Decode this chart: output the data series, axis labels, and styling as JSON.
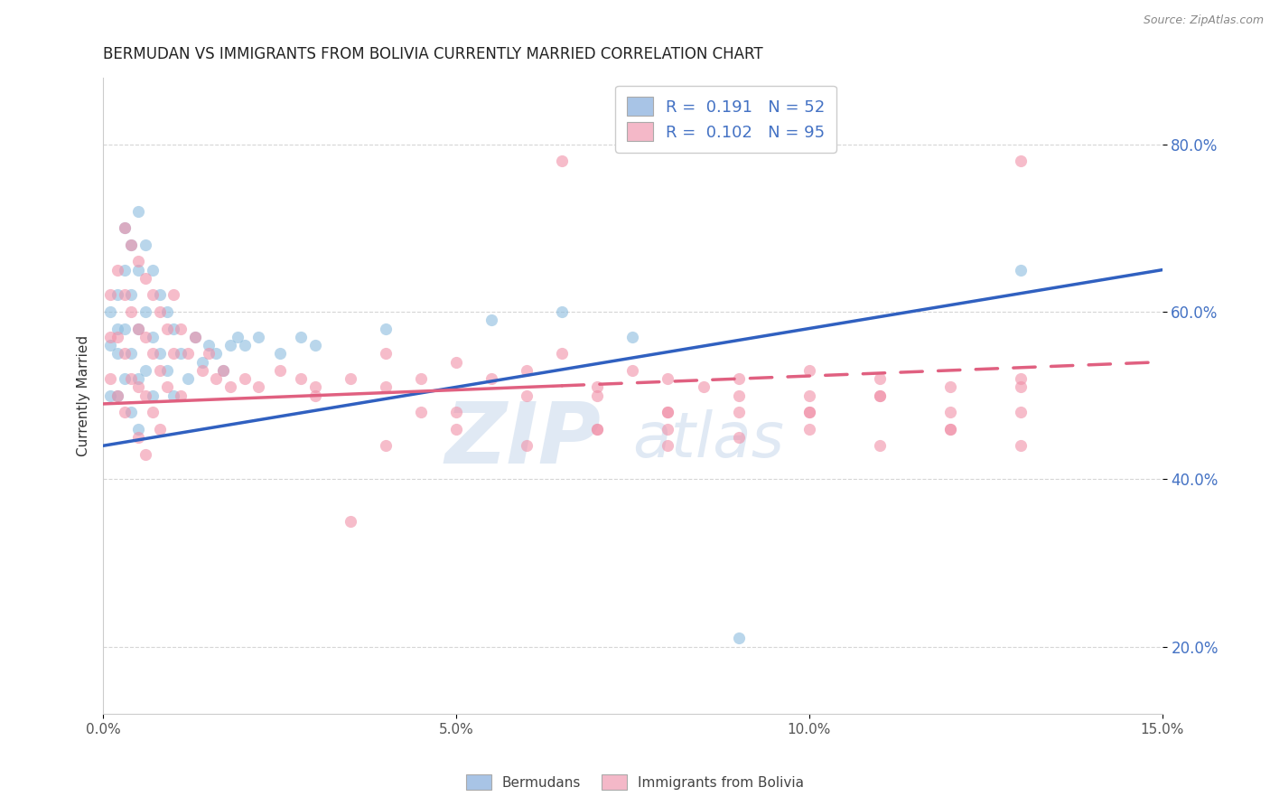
{
  "title": "BERMUDAN VS IMMIGRANTS FROM BOLIVIA CURRENTLY MARRIED CORRELATION CHART",
  "source": "Source: ZipAtlas.com",
  "ylabel_left": "Currently Married",
  "xlim": [
    0.0,
    0.15
  ],
  "ylim": [
    0.12,
    0.88
  ],
  "yticks": [
    0.2,
    0.4,
    0.6,
    0.8
  ],
  "ytick_labels": [
    "20.0%",
    "40.0%",
    "60.0%",
    "80.0%"
  ],
  "xticks": [
    0.0,
    0.05,
    0.1,
    0.15
  ],
  "xtick_labels": [
    "0.0%",
    "5.0%",
    "10.0%",
    "15.0%"
  ],
  "legend_r1": "R =  0.191   N = 52",
  "legend_r2": "R =  0.102   N = 95",
  "legend_blue_color": "#a8c4e6",
  "legend_pink_color": "#f4b8c8",
  "watermark_zip": "ZIP",
  "watermark_atlas": "atlas",
  "blue_scatter_x": [
    0.001,
    0.001,
    0.001,
    0.002,
    0.002,
    0.002,
    0.002,
    0.003,
    0.003,
    0.003,
    0.003,
    0.004,
    0.004,
    0.004,
    0.004,
    0.005,
    0.005,
    0.005,
    0.005,
    0.005,
    0.006,
    0.006,
    0.006,
    0.007,
    0.007,
    0.007,
    0.008,
    0.008,
    0.009,
    0.009,
    0.01,
    0.01,
    0.011,
    0.012,
    0.013,
    0.014,
    0.015,
    0.016,
    0.017,
    0.018,
    0.019,
    0.02,
    0.022,
    0.025,
    0.028,
    0.03,
    0.04,
    0.055,
    0.065,
    0.075,
    0.09,
    0.13
  ],
  "blue_scatter_y": [
    0.5,
    0.56,
    0.6,
    0.58,
    0.5,
    0.55,
    0.62,
    0.7,
    0.65,
    0.58,
    0.52,
    0.68,
    0.62,
    0.55,
    0.48,
    0.72,
    0.65,
    0.58,
    0.52,
    0.46,
    0.68,
    0.6,
    0.53,
    0.65,
    0.57,
    0.5,
    0.62,
    0.55,
    0.6,
    0.53,
    0.58,
    0.5,
    0.55,
    0.52,
    0.57,
    0.54,
    0.56,
    0.55,
    0.53,
    0.56,
    0.57,
    0.56,
    0.57,
    0.55,
    0.57,
    0.56,
    0.58,
    0.59,
    0.6,
    0.57,
    0.21,
    0.65
  ],
  "pink_scatter_x": [
    0.001,
    0.001,
    0.001,
    0.002,
    0.002,
    0.002,
    0.003,
    0.003,
    0.003,
    0.003,
    0.004,
    0.004,
    0.004,
    0.005,
    0.005,
    0.005,
    0.005,
    0.006,
    0.006,
    0.006,
    0.006,
    0.007,
    0.007,
    0.007,
    0.008,
    0.008,
    0.008,
    0.009,
    0.009,
    0.01,
    0.01,
    0.011,
    0.011,
    0.012,
    0.013,
    0.014,
    0.015,
    0.016,
    0.017,
    0.018,
    0.02,
    0.022,
    0.025,
    0.028,
    0.03,
    0.035,
    0.04,
    0.045,
    0.05,
    0.055,
    0.06,
    0.065,
    0.07,
    0.075,
    0.08,
    0.085,
    0.09,
    0.1,
    0.11,
    0.12,
    0.13,
    0.065,
    0.035,
    0.045,
    0.06,
    0.07,
    0.08,
    0.09,
    0.1,
    0.11,
    0.12,
    0.13,
    0.04,
    0.05,
    0.06,
    0.07,
    0.08,
    0.09,
    0.1,
    0.11,
    0.12,
    0.13,
    0.04,
    0.08,
    0.1,
    0.13,
    0.08,
    0.1,
    0.12,
    0.03,
    0.05,
    0.07,
    0.09,
    0.11,
    0.13
  ],
  "pink_scatter_y": [
    0.52,
    0.57,
    0.62,
    0.65,
    0.57,
    0.5,
    0.7,
    0.62,
    0.55,
    0.48,
    0.68,
    0.6,
    0.52,
    0.66,
    0.58,
    0.51,
    0.45,
    0.64,
    0.57,
    0.5,
    0.43,
    0.62,
    0.55,
    0.48,
    0.6,
    0.53,
    0.46,
    0.58,
    0.51,
    0.62,
    0.55,
    0.58,
    0.5,
    0.55,
    0.57,
    0.53,
    0.55,
    0.52,
    0.53,
    0.51,
    0.52,
    0.51,
    0.53,
    0.52,
    0.51,
    0.52,
    0.55,
    0.52,
    0.54,
    0.52,
    0.53,
    0.55,
    0.51,
    0.53,
    0.52,
    0.51,
    0.52,
    0.53,
    0.52,
    0.51,
    0.52,
    0.78,
    0.35,
    0.48,
    0.5,
    0.46,
    0.48,
    0.5,
    0.48,
    0.5,
    0.48,
    0.78,
    0.44,
    0.46,
    0.44,
    0.46,
    0.44,
    0.45,
    0.46,
    0.44,
    0.46,
    0.44,
    0.51,
    0.48,
    0.5,
    0.51,
    0.46,
    0.48,
    0.46,
    0.5,
    0.48,
    0.5,
    0.48,
    0.5,
    0.48
  ],
  "blue_line_x": [
    0.0,
    0.15
  ],
  "blue_line_y": [
    0.44,
    0.65
  ],
  "pink_line_x": [
    0.0,
    0.15
  ],
  "pink_line_y": [
    0.49,
    0.54
  ],
  "pink_dash_split": 0.065,
  "grid_color": "#cccccc",
  "blue_color": "#8bbcde",
  "pink_color": "#f090a8",
  "blue_line_color": "#3060c0",
  "pink_line_color": "#e06080",
  "background_color": "#ffffff",
  "title_fontsize": 12,
  "axis_label_fontsize": 11,
  "tick_fontsize": 11
}
